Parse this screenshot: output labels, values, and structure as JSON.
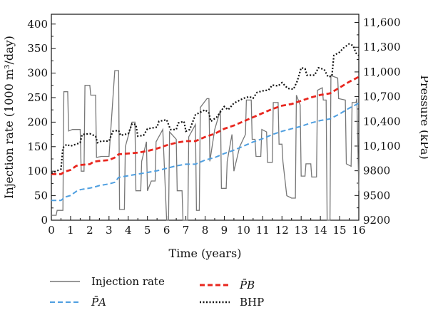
{
  "chart_data": {
    "type": "line",
    "xlabel": "Time (years)",
    "ylabel_left": "Injection rate (1000 m³/day)",
    "ylabel_right": "Pressure (kPa)",
    "xlim": [
      0,
      16
    ],
    "ylim_left": [
      0,
      420
    ],
    "ylim_right": [
      9200,
      11700
    ],
    "x_ticks": [
      "0",
      "0.5",
      "1",
      "1.5",
      "2",
      "2.5",
      "3",
      "3.5",
      "4",
      "4.5",
      "5",
      "5.5",
      "6",
      "6.5",
      "7",
      "7.5",
      "8",
      "8.5",
      "9",
      "9.5",
      "10",
      "10.5",
      "11",
      "11.5",
      "12",
      "12.5",
      "13",
      "13.5",
      "14",
      "14.5",
      "15",
      "15.5",
      "16"
    ],
    "y_left_ticks": [
      "0",
      "50",
      "100",
      "150",
      "200",
      "250",
      "300",
      "350",
      "400"
    ],
    "y_right_ticks": [
      "9200",
      "9500",
      "9800",
      "10,100",
      "10,400",
      "10,700",
      "11,000",
      "11,300",
      "11,600"
    ],
    "legend_position": "bottom",
    "legend": {
      "injection": "Injection rate",
      "pa": "P̄A",
      "pb": "P̄B",
      "bhp": "BHP"
    },
    "series": {
      "injection_rate": [
        [
          0,
          10
        ],
        [
          0.25,
          10
        ],
        [
          0.3,
          20
        ],
        [
          0.6,
          20
        ],
        [
          0.65,
          262
        ],
        [
          0.85,
          262
        ],
        [
          0.9,
          182
        ],
        [
          1.1,
          185
        ],
        [
          1.5,
          185
        ],
        [
          1.55,
          100
        ],
        [
          1.7,
          100
        ],
        [
          1.75,
          275
        ],
        [
          2.0,
          275
        ],
        [
          2.05,
          255
        ],
        [
          2.3,
          255
        ],
        [
          2.35,
          128
        ],
        [
          2.6,
          130
        ],
        [
          2.95,
          130
        ],
        [
          3.0,
          130
        ],
        [
          3.3,
          305
        ],
        [
          3.5,
          305
        ],
        [
          3.55,
          22
        ],
        [
          3.8,
          22
        ],
        [
          3.85,
          150
        ],
        [
          4.2,
          200
        ],
        [
          4.35,
          200
        ],
        [
          4.4,
          60
        ],
        [
          4.65,
          60
        ],
        [
          4.7,
          120
        ],
        [
          4.95,
          160
        ],
        [
          5.0,
          60
        ],
        [
          5.2,
          80
        ],
        [
          5.4,
          80
        ],
        [
          5.45,
          160
        ],
        [
          5.8,
          185
        ],
        [
          6.0,
          0
        ],
        [
          6.1,
          0
        ],
        [
          6.15,
          180
        ],
        [
          6.5,
          165
        ],
        [
          6.55,
          60
        ],
        [
          6.8,
          60
        ],
        [
          6.85,
          0
        ],
        [
          7.1,
          0
        ],
        [
          7.15,
          170
        ],
        [
          7.5,
          195
        ],
        [
          7.55,
          20
        ],
        [
          7.7,
          20
        ],
        [
          7.75,
          230
        ],
        [
          8.1,
          248
        ],
        [
          8.2,
          248
        ],
        [
          8.25,
          120
        ],
        [
          8.5,
          185
        ],
        [
          8.8,
          225
        ],
        [
          8.85,
          65
        ],
        [
          9.1,
          65
        ],
        [
          9.15,
          120
        ],
        [
          9.4,
          175
        ],
        [
          9.5,
          100
        ],
        [
          9.8,
          150
        ],
        [
          10.1,
          175
        ],
        [
          10.15,
          245
        ],
        [
          10.4,
          245
        ],
        [
          10.45,
          165
        ],
        [
          10.6,
          165
        ],
        [
          10.65,
          130
        ],
        [
          10.9,
          130
        ],
        [
          10.95,
          185
        ],
        [
          11.2,
          180
        ],
        [
          11.25,
          118
        ],
        [
          11.5,
          118
        ],
        [
          11.55,
          240
        ],
        [
          11.8,
          240
        ],
        [
          11.85,
          155
        ],
        [
          12.0,
          155
        ],
        [
          12.05,
          120
        ],
        [
          12.25,
          50
        ],
        [
          12.5,
          45
        ],
        [
          12.7,
          45
        ],
        [
          12.75,
          255
        ],
        [
          12.95,
          235
        ],
        [
          13.0,
          90
        ],
        [
          13.2,
          90
        ],
        [
          13.25,
          115
        ],
        [
          13.5,
          115
        ],
        [
          13.55,
          88
        ],
        [
          13.8,
          88
        ],
        [
          13.85,
          265
        ],
        [
          14.1,
          270
        ],
        [
          14.15,
          245
        ],
        [
          14.3,
          245
        ],
        [
          14.35,
          0
        ],
        [
          14.5,
          0
        ],
        [
          14.55,
          295
        ],
        [
          14.9,
          290
        ],
        [
          14.95,
          248
        ],
        [
          15.3,
          245
        ],
        [
          15.35,
          115
        ],
        [
          15.6,
          110
        ],
        [
          15.65,
          240
        ],
        [
          15.85,
          240
        ],
        [
          15.9,
          248
        ],
        [
          16,
          60
        ]
      ],
      "pa": [
        [
          0,
          9440
        ],
        [
          0.5,
          9440
        ],
        [
          0.7,
          9480
        ],
        [
          1.0,
          9500
        ],
        [
          1.3,
          9550
        ],
        [
          1.5,
          9570
        ],
        [
          2.0,
          9590
        ],
        [
          2.2,
          9600
        ],
        [
          2.5,
          9620
        ],
        [
          3.0,
          9640
        ],
        [
          3.3,
          9660
        ],
        [
          3.5,
          9720
        ],
        [
          4.0,
          9740
        ],
        [
          4.5,
          9760
        ],
        [
          5.0,
          9780
        ],
        [
          5.5,
          9800
        ],
        [
          6.0,
          9830
        ],
        [
          6.5,
          9860
        ],
        [
          7.0,
          9880
        ],
        [
          7.5,
          9880
        ],
        [
          8.0,
          9930
        ],
        [
          8.5,
          9960
        ],
        [
          9.0,
          10010
        ],
        [
          9.5,
          10050
        ],
        [
          10.0,
          10100
        ],
        [
          10.5,
          10150
        ],
        [
          11.0,
          10190
        ],
        [
          11.5,
          10240
        ],
        [
          12.0,
          10280
        ],
        [
          12.5,
          10310
        ],
        [
          13.0,
          10340
        ],
        [
          13.5,
          10380
        ],
        [
          14.0,
          10410
        ],
        [
          14.5,
          10430
        ],
        [
          15.0,
          10490
        ],
        [
          15.5,
          10560
        ],
        [
          16,
          10620
        ]
      ],
      "pb": [
        [
          0,
          9760
        ],
        [
          0.5,
          9760
        ],
        [
          0.7,
          9790
        ],
        [
          1.0,
          9810
        ],
        [
          1.3,
          9860
        ],
        [
          1.5,
          9870
        ],
        [
          2.0,
          9880
        ],
        [
          2.2,
          9910
        ],
        [
          2.5,
          9920
        ],
        [
          3.0,
          9930
        ],
        [
          3.3,
          9960
        ],
        [
          3.5,
          10000
        ],
        [
          4.0,
          10010
        ],
        [
          4.5,
          10020
        ],
        [
          5.0,
          10040
        ],
        [
          5.5,
          10070
        ],
        [
          6.0,
          10110
        ],
        [
          6.5,
          10140
        ],
        [
          7.0,
          10160
        ],
        [
          7.5,
          10160
        ],
        [
          8.0,
          10210
        ],
        [
          8.5,
          10250
        ],
        [
          9.0,
          10310
        ],
        [
          9.5,
          10350
        ],
        [
          10.0,
          10400
        ],
        [
          10.5,
          10450
        ],
        [
          11.0,
          10500
        ],
        [
          11.5,
          10550
        ],
        [
          12.0,
          10590
        ],
        [
          12.5,
          10610
        ],
        [
          13.0,
          10650
        ],
        [
          13.5,
          10690
        ],
        [
          14.0,
          10720
        ],
        [
          14.5,
          10740
        ],
        [
          15.0,
          10810
        ],
        [
          15.5,
          10880
        ],
        [
          16,
          10940
        ]
      ],
      "bhp": [
        [
          0,
          9770
        ],
        [
          0.5,
          9820
        ],
        [
          0.6,
          10080
        ],
        [
          0.8,
          10120
        ],
        [
          1.0,
          10100
        ],
        [
          1.5,
          10140
        ],
        [
          1.6,
          10240
        ],
        [
          2.0,
          10250
        ],
        [
          2.3,
          10220
        ],
        [
          2.4,
          10140
        ],
        [
          2.6,
          10160
        ],
        [
          3.0,
          10160
        ],
        [
          3.2,
          10280
        ],
        [
          3.5,
          10290
        ],
        [
          3.6,
          10230
        ],
        [
          4.0,
          10250
        ],
        [
          4.2,
          10370
        ],
        [
          4.4,
          10360
        ],
        [
          4.5,
          10220
        ],
        [
          4.8,
          10230
        ],
        [
          5.0,
          10310
        ],
        [
          5.5,
          10330
        ],
        [
          5.6,
          10400
        ],
        [
          6.0,
          10420
        ],
        [
          6.2,
          10300
        ],
        [
          6.5,
          10300
        ],
        [
          6.6,
          10380
        ],
        [
          6.9,
          10400
        ],
        [
          7.0,
          10280
        ],
        [
          7.2,
          10300
        ],
        [
          7.5,
          10480
        ],
        [
          8.0,
          10540
        ],
        [
          8.2,
          10500
        ],
        [
          8.3,
          10400
        ],
        [
          8.6,
          10450
        ],
        [
          9.0,
          10580
        ],
        [
          9.2,
          10540
        ],
        [
          9.5,
          10620
        ],
        [
          10.0,
          10680
        ],
        [
          10.3,
          10700
        ],
        [
          10.5,
          10680
        ],
        [
          10.7,
          10750
        ],
        [
          11.0,
          10770
        ],
        [
          11.3,
          10780
        ],
        [
          11.5,
          10840
        ],
        [
          11.8,
          10830
        ],
        [
          12.0,
          10870
        ],
        [
          12.3,
          10800
        ],
        [
          12.6,
          10790
        ],
        [
          12.8,
          10890
        ],
        [
          13.0,
          11050
        ],
        [
          13.2,
          11040
        ],
        [
          13.3,
          10960
        ],
        [
          13.7,
          10960
        ],
        [
          13.9,
          11050
        ],
        [
          14.2,
          11030
        ],
        [
          14.4,
          10940
        ],
        [
          14.6,
          10950
        ],
        [
          14.7,
          11200
        ],
        [
          15.0,
          11240
        ],
        [
          15.2,
          11290
        ],
        [
          15.5,
          11340
        ],
        [
          15.7,
          11320
        ],
        [
          15.85,
          11230
        ],
        [
          16,
          11200
        ]
      ]
    }
  }
}
